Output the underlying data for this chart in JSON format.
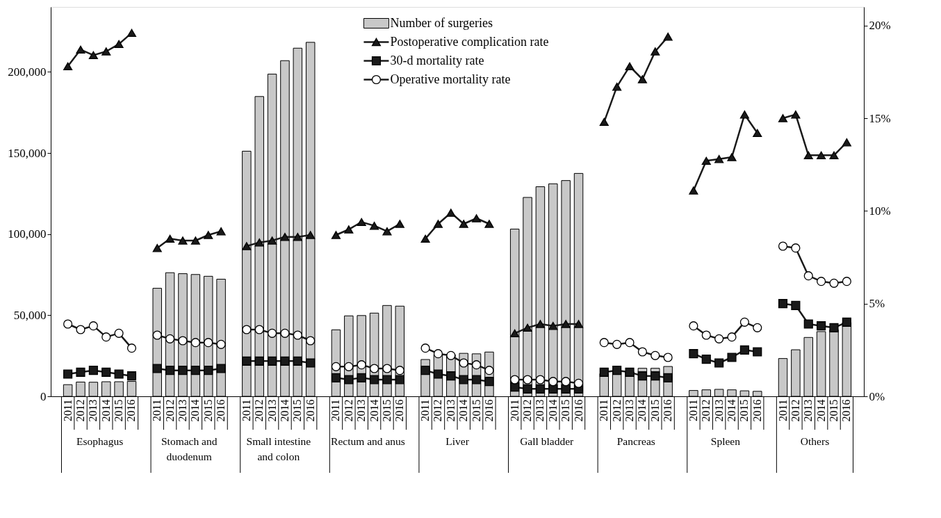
{
  "chart_data": {
    "type": "bar",
    "categories": [
      "2011",
      "2012",
      "2013",
      "2014",
      "2015",
      "2016",
      null,
      "2011",
      "2012",
      "2013",
      "2014",
      "2015",
      "2016",
      null,
      "2011",
      "2012",
      "2013",
      "2014",
      "2015",
      "2016",
      null,
      "2011",
      "2012",
      "2013",
      "2014",
      "2015",
      "2016",
      null,
      "2011",
      "2012",
      "2013",
      "2014",
      "2015",
      "2016",
      null,
      "2011",
      "2012",
      "2013",
      "2014",
      "2015",
      "2016",
      null,
      "2011",
      "2012",
      "2013",
      "2014",
      "2015",
      "2016",
      null,
      "2011",
      "2012",
      "2013",
      "2014",
      "2015",
      "2016",
      null,
      "2011",
      "2012",
      "2013",
      "2014",
      "2015",
      "2016"
    ],
    "series": [
      {
        "name": "Number of surgeries",
        "type": "bar",
        "color": "#c8c8c8",
        "values": [
          7200,
          8800,
          8700,
          9000,
          9000,
          9200,
          null,
          66600,
          76200,
          75600,
          75100,
          74000,
          72200,
          null,
          151100,
          184800,
          198600,
          206900,
          214600,
          218200,
          null,
          41000,
          49600,
          49800,
          51300,
          56000,
          55600,
          null,
          22700,
          25600,
          25700,
          26500,
          26200,
          27300,
          null,
          103100,
          122600,
          129200,
          131000,
          133000,
          137400,
          null,
          14000,
          15500,
          15000,
          17300,
          17300,
          18400,
          null,
          3600,
          4000,
          4300,
          4000,
          3400,
          3100,
          null,
          23300,
          28700,
          36300,
          39900,
          41000,
          45500
        ]
      },
      {
        "name": "Postoperative complication rate",
        "type": "line",
        "axis": "y2",
        "marker": "triangle",
        "color": "#1a1a1a",
        "values": [
          17.8,
          18.7,
          18.4,
          18.6,
          19.0,
          19.6,
          null,
          8.0,
          8.5,
          8.4,
          8.4,
          8.7,
          8.9,
          null,
          8.1,
          8.3,
          8.4,
          8.6,
          8.6,
          8.7,
          null,
          8.7,
          9.0,
          9.4,
          9.2,
          8.9,
          9.3,
          null,
          8.5,
          9.3,
          9.9,
          9.3,
          9.6,
          9.3,
          null,
          3.4,
          3.7,
          3.9,
          3.8,
          3.9,
          3.9,
          null,
          14.8,
          16.7,
          17.8,
          17.1,
          18.6,
          19.4,
          null,
          11.1,
          12.7,
          12.8,
          12.9,
          15.2,
          14.2,
          null,
          15.0,
          15.2,
          13.0,
          13.0,
          13.0,
          13.7
        ]
      },
      {
        "name": "30-d mortality rate",
        "type": "line",
        "axis": "y2",
        "marker": "square",
        "color": "#1a1a1a",
        "values": [
          1.2,
          1.3,
          1.4,
          1.3,
          1.2,
          1.1,
          null,
          1.5,
          1.4,
          1.4,
          1.4,
          1.4,
          1.5,
          null,
          1.9,
          1.9,
          1.9,
          1.9,
          1.9,
          1.8,
          null,
          1.0,
          0.9,
          1.0,
          0.9,
          0.9,
          0.9,
          null,
          1.4,
          1.2,
          1.1,
          0.9,
          0.9,
          0.8,
          null,
          0.5,
          0.4,
          0.4,
          0.4,
          0.4,
          0.4,
          null,
          1.3,
          1.4,
          1.3,
          1.1,
          1.1,
          1.0,
          null,
          2.3,
          2.0,
          1.8,
          2.1,
          2.5,
          2.4,
          null,
          5.0,
          4.9,
          3.9,
          3.8,
          3.7,
          4.0
        ]
      },
      {
        "name": "Operative mortality rate",
        "type": "line",
        "axis": "y2",
        "marker": "circle",
        "color": "#1a1a1a",
        "values": [
          3.9,
          3.6,
          3.8,
          3.2,
          3.4,
          2.6,
          null,
          3.3,
          3.1,
          3.0,
          2.9,
          2.9,
          2.8,
          null,
          3.6,
          3.6,
          3.4,
          3.4,
          3.3,
          3.0,
          null,
          1.6,
          1.6,
          1.7,
          1.5,
          1.5,
          1.4,
          null,
          2.6,
          2.3,
          2.2,
          1.8,
          1.7,
          1.4,
          null,
          0.9,
          0.9,
          0.9,
          0.8,
          0.8,
          0.7,
          null,
          2.9,
          2.8,
          2.9,
          2.4,
          2.2,
          2.1,
          null,
          3.8,
          3.3,
          3.1,
          3.2,
          4.0,
          3.7,
          null,
          8.1,
          8.0,
          6.5,
          6.2,
          6.1,
          6.2
        ]
      }
    ],
    "annotations": [
      "Esophagus",
      "Stomach and duodenum",
      "Small intestine and colon",
      "Rectum and anus",
      "Liver",
      "Gall bladder",
      "Pancreas",
      "Spleen",
      "Others"
    ],
    "ylim": [
      0,
      240000
    ],
    "yticks": [
      0,
      {
        "value": 50000,
        "label": "50,000"
      },
      {
        "value": 100000,
        "label": "100,000"
      },
      {
        "value": 150000,
        "label": "150,000"
      },
      {
        "value": 200000,
        "label": "200,000"
      }
    ],
    "y2lim": [
      0,
      21
    ],
    "y2ticks": [
      {
        "value": 0,
        "label": "0%"
      },
      {
        "value": 5,
        "label": "5%"
      },
      {
        "value": 10,
        "label": "10%"
      },
      {
        "value": 15,
        "label": "15%"
      },
      {
        "value": 20,
        "label": "20%"
      }
    ],
    "legend": "top",
    "grid": false
  }
}
